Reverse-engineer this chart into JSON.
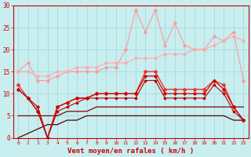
{
  "xlabel": "Vent moyen/en rafales ( km/h )",
  "bg_color": "#c8eef0",
  "grid_color": "#aadddd",
  "x_values": [
    0,
    1,
    2,
    3,
    4,
    5,
    6,
    7,
    8,
    9,
    10,
    11,
    12,
    13,
    14,
    15,
    16,
    17,
    18,
    19,
    20,
    21,
    22,
    23
  ],
  "series": [
    {
      "y": [
        15,
        17,
        13,
        13,
        14,
        15,
        15,
        15,
        15,
        16,
        16,
        20,
        29,
        24,
        29,
        21,
        26,
        21,
        20,
        20,
        23,
        22,
        24,
        13
      ],
      "color": "#ff9999",
      "lw": 0.8,
      "marker": "D",
      "ms": 1.8,
      "zorder": 3
    },
    {
      "y": [
        15,
        15,
        14,
        14,
        15,
        15,
        16,
        16,
        16,
        17,
        17,
        17,
        18,
        18,
        18,
        19,
        19,
        19,
        20,
        20,
        21,
        22,
        23,
        22
      ],
      "color": "#ffaaaa",
      "lw": 0.8,
      "marker": "D",
      "ms": 1.8,
      "zorder": 3
    },
    {
      "y": [
        12,
        9,
        6,
        0,
        7,
        8,
        9,
        9,
        10,
        10,
        10,
        10,
        10,
        15,
        15,
        11,
        11,
        11,
        11,
        11,
        13,
        12,
        7,
        4
      ],
      "color": "#ee3333",
      "lw": 1.0,
      "marker": "D",
      "ms": 2.0,
      "zorder": 4
    },
    {
      "y": [
        11,
        9,
        7,
        0,
        7,
        8,
        9,
        9,
        10,
        10,
        10,
        10,
        10,
        14,
        14,
        10,
        10,
        10,
        10,
        10,
        13,
        11,
        7,
        4
      ],
      "color": "#cc0000",
      "lw": 0.9,
      "marker": "D",
      "ms": 1.8,
      "zorder": 4
    },
    {
      "y": [
        11,
        9,
        6,
        0,
        6,
        7,
        8,
        9,
        9,
        9,
        9,
        9,
        9,
        13,
        13,
        9,
        9,
        9,
        9,
        9,
        12,
        10,
        6,
        4
      ],
      "color": "#bb0000",
      "lw": 0.8,
      "marker": "D",
      "ms": 1.5,
      "zorder": 4
    },
    {
      "y": [
        5,
        5,
        5,
        5,
        5,
        6,
        6,
        6,
        7,
        7,
        7,
        7,
        7,
        7,
        7,
        7,
        7,
        7,
        7,
        7,
        7,
        7,
        7,
        7
      ],
      "color": "#880000",
      "lw": 0.9,
      "marker": null,
      "ms": 0,
      "zorder": 2
    },
    {
      "y": [
        0,
        1,
        2,
        3,
        3,
        4,
        4,
        5,
        5,
        5,
        5,
        5,
        5,
        5,
        5,
        5,
        5,
        5,
        5,
        5,
        5,
        5,
        4,
        4
      ],
      "color": "#550000",
      "lw": 0.9,
      "marker": null,
      "ms": 0,
      "zorder": 2
    }
  ],
  "ylim": [
    0,
    30
  ],
  "yticks": [
    0,
    5,
    10,
    15,
    20,
    25,
    30
  ],
  "tick_color": "#cc0000",
  "axis_color": "#cc0000"
}
